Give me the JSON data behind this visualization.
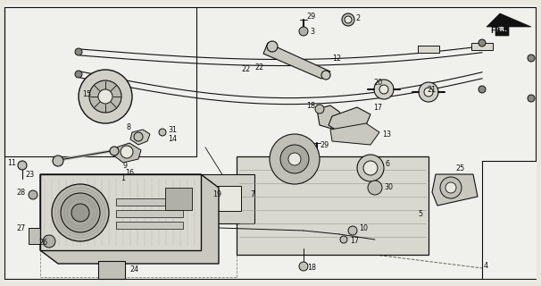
{
  "bg_color": "#e8e8e0",
  "line_color": "#111111",
  "fig_width": 6.06,
  "fig_height": 3.2,
  "dpi": 100,
  "label_fontsize": 5.8,
  "label_color": "#111111"
}
